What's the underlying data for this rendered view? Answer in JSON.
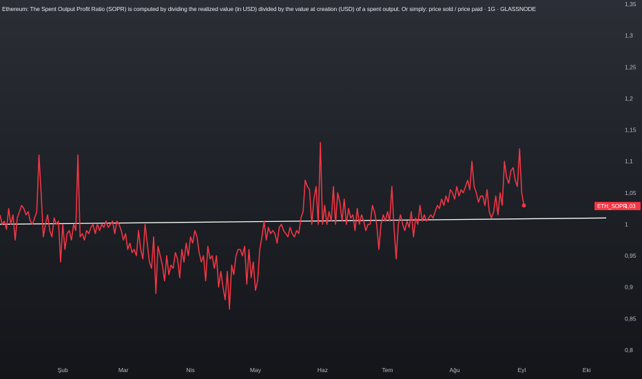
{
  "title": "Ethereum: The Spent Output Profit Ratio (SOPR) is computed by dividing the realized value (in USD) divided by the value at creation (USD) of a spent output. Or simply: price sold / price paid · 1G · GLASSNODE",
  "colors": {
    "series": "#f23645",
    "baseline": "#ffffff",
    "label_bg": "#f23645",
    "tick_text": "#b7bbc4"
  },
  "chart_data": {
    "type": "line",
    "ylim": [
      0.8,
      1.35
    ],
    "y_ticks": [
      "1,35",
      "1,3",
      "1,25",
      "1,2",
      "1,15",
      "1,1",
      "1,05",
      "1",
      "0,95",
      "0,9",
      "0,85",
      "0,8"
    ],
    "y_tick_values": [
      1.35,
      1.3,
      1.25,
      1.2,
      1.15,
      1.1,
      1.05,
      1.0,
      0.95,
      0.9,
      0.85,
      0.8
    ],
    "x_ticks": [
      "Şub",
      "Mar",
      "Nis",
      "May",
      "Haz",
      "Tem",
      "Ağu",
      "Eyl",
      "Eki"
    ],
    "x_tick_index": [
      29,
      57,
      88,
      118,
      149,
      179,
      210,
      241,
      271
    ],
    "x_range": [
      0,
      280
    ],
    "series": [
      {
        "name": "ETH_SOPR",
        "last_value_label": "1,03",
        "values": [
          1.015,
          1.0,
          1.005,
          0.992,
          1.025,
          1.0,
          1.015,
          0.975,
          1.01,
          1.02,
          1.03,
          1.025,
          1.015,
          1.02,
          1.005,
          1.0,
          1.01,
          1.02,
          1.11,
          1.05,
          0.98,
          1.0,
          1.015,
          0.99,
          0.98,
          1.01,
          1.0,
          1.005,
          0.94,
          1.0,
          0.96,
          0.985,
          0.99,
          0.975,
          1.0,
          0.99,
          1.11,
          0.98,
          0.985,
          0.975,
          0.99,
          0.985,
          0.995,
          1.0,
          0.985,
          1.0,
          0.99,
          1.0,
          0.995,
          1.005,
          0.995,
          1.0,
          1.005,
          0.985,
          1.005,
          1.0,
          0.99,
          0.975,
          0.985,
          0.96,
          0.97,
          0.955,
          0.96,
          0.95,
          0.99,
          0.96,
          0.945,
          1.0,
          0.97,
          0.94,
          0.93,
          0.98,
          0.89,
          0.965,
          0.95,
          0.935,
          0.91,
          0.95,
          0.92,
          0.935,
          0.93,
          0.955,
          0.945,
          0.915,
          0.96,
          0.94,
          0.97,
          0.95,
          0.98,
          0.97,
          0.99,
          0.98,
          0.955,
          0.94,
          0.95,
          0.91,
          0.965,
          0.945,
          0.95,
          0.93,
          0.95,
          0.9,
          0.925,
          0.9,
          0.88,
          0.925,
          0.865,
          0.935,
          0.92,
          0.95,
          0.96,
          0.96,
          0.95,
          0.965,
          0.905,
          0.96,
          0.915,
          0.94,
          0.895,
          0.91,
          0.96,
          0.98,
          1.005,
          0.975,
          0.995,
          0.985,
          0.99,
          0.985,
          0.97,
          0.995,
          1.0,
          0.99,
          0.985,
          0.98,
          0.995,
          0.985,
          0.98,
          0.99,
          0.985,
          1.01,
          1.02,
          1.07,
          1.06,
          1.055,
          1.0,
          1.04,
          1.06,
          1.0,
          1.13,
          1.0,
          1.03,
          1.0,
          1.02,
          1.005,
          1.06,
          1.0,
          1.05,
          1.035,
          1.005,
          1.04,
          1.0,
          1.025,
          1.01,
          1.015,
          0.99,
          1.025,
          1.0,
          1.015,
          1.005,
          0.99,
          1.0,
          1.0,
          1.03,
          1.02,
          1.0,
          0.96,
          1.0,
          1.015,
          1.005,
          1.02,
          1.005,
          1.06,
          0.995,
          0.945,
          1.0,
          1.015,
          1.0,
          0.99,
          1.005,
          0.995,
          1.02,
          0.98,
          1.01,
          1.0,
          1.03,
          1.005,
          1.015,
          1.005,
          1.01,
          1.015,
          1.01,
          1.02,
          1.03,
          1.025,
          1.04,
          1.03,
          1.045,
          1.035,
          1.055,
          1.05,
          1.04,
          1.06,
          1.045,
          1.055,
          1.05,
          1.06,
          1.07,
          1.055,
          1.1,
          1.06,
          1.05,
          1.035,
          1.045,
          1.045,
          1.03,
          1.055,
          1.02,
          1.01,
          1.02,
          1.045,
          1.015,
          1.05,
          1.03,
          1.1,
          1.075,
          1.065,
          1.085,
          1.09,
          1.07,
          1.06,
          1.12,
          1.05,
          1.03
        ]
      }
    ],
    "baseline": {
      "start": 1.0,
      "end": 1.01
    }
  }
}
